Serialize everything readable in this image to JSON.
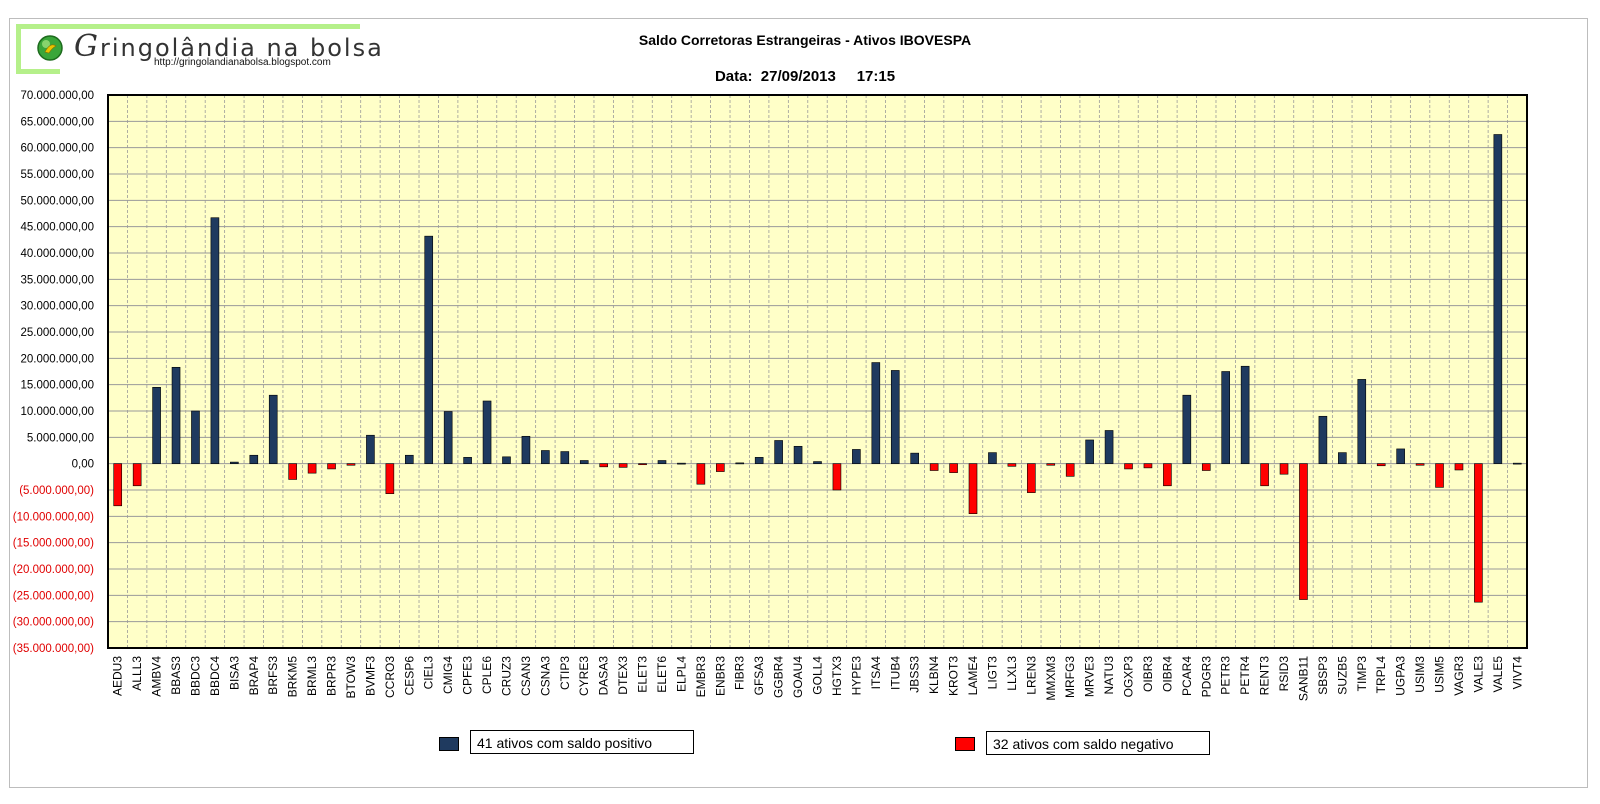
{
  "logo": {
    "title": "ringolândia na bolsa",
    "initial": "G",
    "url": "http://gringolandianabolsa.blogspot.com",
    "icon": "globe-leaf-icon"
  },
  "chart_data": {
    "type": "bar",
    "title": "Saldo Corretoras Estrangeiras - Ativos IBOVESPA",
    "subtitle": "Data:  27/09/2013     17:15",
    "ylim": [
      -35000000,
      70000000
    ],
    "ytick_step": 5000000,
    "yticks": [
      "70.000.000,00",
      "65.000.000,00",
      "60.000.000,00",
      "55.000.000,00",
      "50.000.000,00",
      "45.000.000,00",
      "40.000.000,00",
      "35.000.000,00",
      "30.000.000,00",
      "25.000.000,00",
      "20.000.000,00",
      "15.000.000,00",
      "10.000.000,00",
      "5.000.000,00",
      "0,00",
      "(5.000.000,00)",
      "(10.000.000,00)",
      "(15.000.000,00)",
      "(20.000.000,00)",
      "(25.000.000,00)",
      "(30.000.000,00)",
      "(35.000.000,00)"
    ],
    "grid": true,
    "colors": {
      "positive": "#1f3a5f",
      "negative": "#ff0000",
      "plot_bg": "#ffffc8",
      "grid": "#9a9a9a",
      "neg_tick": "#e00000"
    },
    "categories": [
      "AEDU3",
      "ALLL3",
      "AMBV4",
      "BBAS3",
      "BBDC3",
      "BBDC4",
      "BISA3",
      "BRAP4",
      "BRFS3",
      "BRKM5",
      "BRML3",
      "BRPR3",
      "BTOW3",
      "BVMF3",
      "CCRO3",
      "CESP6",
      "CIEL3",
      "CMIG4",
      "CPFE3",
      "CPLE6",
      "CRUZ3",
      "CSAN3",
      "CSNA3",
      "CTIP3",
      "CYRE3",
      "DASA3",
      "DTEX3",
      "ELET3",
      "ELET6",
      "ELPL4",
      "EMBR3",
      "ENBR3",
      "FIBR3",
      "GFSA3",
      "GGBR4",
      "GOAU4",
      "GOLL4",
      "HGTX3",
      "HYPE3",
      "ITSA4",
      "ITUB4",
      "JBSS3",
      "KLBN4",
      "KROT3",
      "LAME4",
      "LIGT3",
      "LLXL3",
      "LREN3",
      "MMXM3",
      "MRFG3",
      "MRVE3",
      "NATU3",
      "OGXP3",
      "OIBR3",
      "OIBR4",
      "PCAR4",
      "PDGR3",
      "PETR3",
      "PETR4",
      "RENT3",
      "RSID3",
      "SANB11",
      "SBSP3",
      "SUZB5",
      "TIMP3",
      "TRPL4",
      "UGPA3",
      "USIM3",
      "USIM5",
      "VAGR3",
      "VALE3",
      "VALE5",
      "VIVT4"
    ],
    "values": [
      -8000000,
      -4200000,
      14500000,
      18300000,
      10000000,
      46700000,
      300000,
      1600000,
      13000000,
      -3000000,
      -1800000,
      -1000000,
      -300000,
      5400000,
      -5700000,
      1600000,
      43200000,
      9900000,
      1200000,
      11900000,
      1300000,
      5200000,
      2500000,
      2300000,
      600000,
      -600000,
      -700000,
      -200000,
      600000,
      100000,
      -3900000,
      -1500000,
      150000,
      1200000,
      4400000,
      3300000,
      400000,
      -5000000,
      2700000,
      19200000,
      17700000,
      2000000,
      -1300000,
      -1700000,
      -9500000,
      2100000,
      -500000,
      -5500000,
      -300000,
      -2400000,
      4500000,
      6300000,
      -1000000,
      -800000,
      -4200000,
      13000000,
      -1300000,
      17500000,
      18500000,
      -4200000,
      -2000000,
      -25800000,
      9000000,
      2100000,
      16000000,
      -400000,
      2800000,
      -300000,
      -4500000,
      -1200000,
      -26300000,
      62500000,
      100000
    ]
  },
  "legend": {
    "positive": "41 ativos com saldo positivo",
    "negative": "32 ativos com saldo negativo"
  }
}
